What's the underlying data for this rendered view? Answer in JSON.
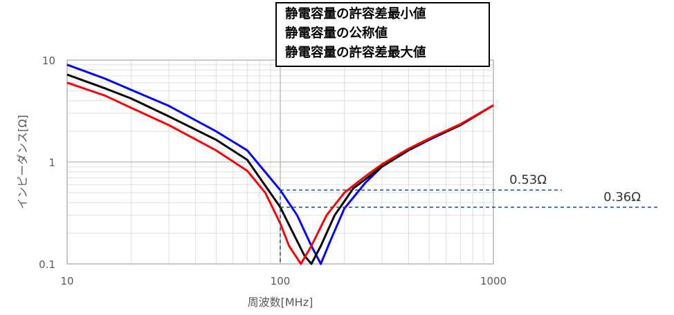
{
  "chart_data": {
    "type": "line",
    "xscale": "log",
    "yscale": "log",
    "xlim": [
      10,
      1000
    ],
    "ylim": [
      0.1,
      10
    ],
    "xlabel": "周波数[MHz]",
    "ylabel": "インピーダンス[Ω]",
    "x_ticks": [
      "10",
      "100",
      "1000"
    ],
    "y_ticks": [
      "0.1",
      "1",
      "10"
    ],
    "grid": true,
    "legend_position": "top",
    "series": [
      {
        "name": "静電容量の許容差最小値",
        "color": "#0000ff",
        "points": [
          [
            10,
            9.0
          ],
          [
            15,
            6.6
          ],
          [
            20,
            5.1
          ],
          [
            30,
            3.55
          ],
          [
            50,
            2.0
          ],
          [
            70,
            1.3
          ],
          [
            100,
            0.53
          ],
          [
            120,
            0.3
          ],
          [
            140,
            0.15
          ],
          [
            155,
            0.1
          ],
          [
            170,
            0.16
          ],
          [
            200,
            0.35
          ],
          [
            250,
            0.62
          ],
          [
            300,
            0.9
          ],
          [
            400,
            1.3
          ],
          [
            500,
            1.65
          ],
          [
            700,
            2.3
          ],
          [
            1000,
            3.6
          ]
        ]
      },
      {
        "name": "静電容量の公称値",
        "color": "#000000",
        "points": [
          [
            10,
            7.2
          ],
          [
            15,
            5.3
          ],
          [
            20,
            4.2
          ],
          [
            30,
            2.8
          ],
          [
            50,
            1.65
          ],
          [
            70,
            1.05
          ],
          [
            100,
            0.36
          ],
          [
            115,
            0.2
          ],
          [
            130,
            0.12
          ],
          [
            140,
            0.1
          ],
          [
            155,
            0.15
          ],
          [
            180,
            0.3
          ],
          [
            220,
            0.55
          ],
          [
            300,
            0.9
          ],
          [
            400,
            1.32
          ],
          [
            500,
            1.68
          ],
          [
            700,
            2.3
          ],
          [
            1000,
            3.6
          ]
        ]
      },
      {
        "name": "静電容量の許容差最大値",
        "color": "#ff0000",
        "points": [
          [
            10,
            6.0
          ],
          [
            15,
            4.5
          ],
          [
            20,
            3.4
          ],
          [
            30,
            2.3
          ],
          [
            50,
            1.3
          ],
          [
            70,
            0.82
          ],
          [
            85,
            0.5
          ],
          [
            100,
            0.25
          ],
          [
            110,
            0.15
          ],
          [
            125,
            0.1
          ],
          [
            140,
            0.15
          ],
          [
            165,
            0.3
          ],
          [
            200,
            0.5
          ],
          [
            250,
            0.72
          ],
          [
            300,
            0.95
          ],
          [
            400,
            1.35
          ],
          [
            500,
            1.7
          ],
          [
            700,
            2.35
          ],
          [
            1000,
            3.6
          ]
        ]
      }
    ],
    "annotations": [
      {
        "text": "0.53Ω",
        "value": 0.53
      },
      {
        "text": "0.36Ω",
        "value": 0.36
      }
    ],
    "reference_x": 100,
    "annotation_color": "#1f4e79"
  }
}
